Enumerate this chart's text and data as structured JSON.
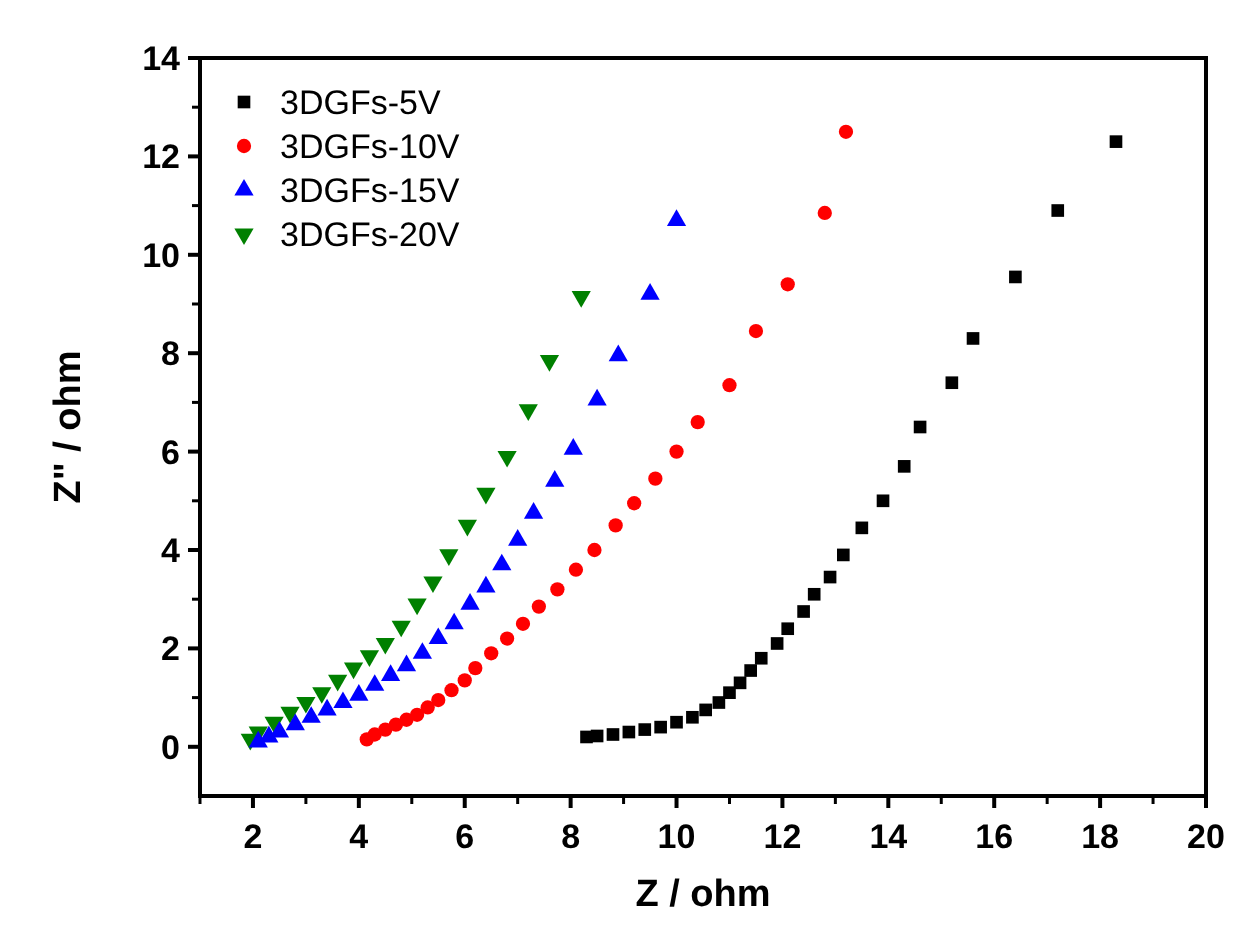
{
  "chart_data": {
    "type": "scatter",
    "xlabel": "Z / ohm",
    "ylabel": "Z\" / ohm",
    "xlim": [
      1,
      20
    ],
    "ylim": [
      -1,
      14
    ],
    "xticks": [
      2,
      4,
      6,
      8,
      10,
      12,
      14,
      16,
      18,
      20
    ],
    "yticks": [
      0,
      2,
      4,
      6,
      8,
      10,
      12,
      14
    ],
    "grid": false,
    "legend": "top left",
    "series": [
      {
        "name": "3DGFs-5V",
        "color": "#000000",
        "marker": "square",
        "x": [
          8.3,
          8.5,
          8.8,
          9.1,
          9.4,
          9.7,
          10.0,
          10.3,
          10.55,
          10.8,
          11.0,
          11.2,
          11.4,
          11.6,
          11.9,
          12.1,
          12.4,
          12.6,
          12.9,
          13.15,
          13.5,
          13.9,
          14.3,
          14.6,
          15.2,
          15.6,
          16.4,
          17.2,
          18.3
        ],
        "values": [
          0.2,
          0.22,
          0.25,
          0.3,
          0.35,
          0.4,
          0.5,
          0.6,
          0.75,
          0.9,
          1.1,
          1.3,
          1.55,
          1.8,
          2.1,
          2.4,
          2.75,
          3.1,
          3.45,
          3.9,
          4.45,
          5.0,
          5.7,
          6.5,
          7.4,
          8.3,
          9.55,
          10.9,
          12.3
        ]
      },
      {
        "name": "3DGFs-10V",
        "color": "#ff0000",
        "marker": "circle",
        "x": [
          4.15,
          4.3,
          4.5,
          4.7,
          4.9,
          5.1,
          5.3,
          5.5,
          5.75,
          6.0,
          6.2,
          6.5,
          6.8,
          7.1,
          7.4,
          7.75,
          8.1,
          8.45,
          8.85,
          9.2,
          9.6,
          10.0,
          10.4,
          11.0,
          11.5,
          12.1,
          12.8,
          13.2
        ],
        "values": [
          0.15,
          0.25,
          0.35,
          0.45,
          0.55,
          0.65,
          0.8,
          0.95,
          1.15,
          1.35,
          1.6,
          1.9,
          2.2,
          2.5,
          2.85,
          3.2,
          3.6,
          4.0,
          4.5,
          4.95,
          5.45,
          6.0,
          6.6,
          7.35,
          8.45,
          9.4,
          10.85,
          12.5
        ]
      },
      {
        "name": "3DGFs-15V",
        "color": "#0000ff",
        "marker": "triangle",
        "x": [
          2.1,
          2.3,
          2.5,
          2.8,
          3.1,
          3.4,
          3.7,
          4.0,
          4.3,
          4.6,
          4.9,
          5.2,
          5.5,
          5.8,
          6.1,
          6.4,
          6.7,
          7.0,
          7.3,
          7.7,
          8.05,
          8.5,
          8.9,
          9.5,
          10.0
        ],
        "values": [
          0.1,
          0.2,
          0.3,
          0.45,
          0.6,
          0.75,
          0.9,
          1.05,
          1.25,
          1.45,
          1.65,
          1.9,
          2.2,
          2.5,
          2.9,
          3.25,
          3.7,
          4.2,
          4.75,
          5.4,
          6.05,
          7.05,
          7.95,
          9.2,
          10.7
        ]
      },
      {
        "name": "3DGFs-20V",
        "color": "#008000",
        "marker": "triangle-down",
        "x": [
          1.95,
          2.1,
          2.4,
          2.7,
          3.0,
          3.3,
          3.6,
          3.9,
          4.2,
          4.5,
          4.8,
          5.1,
          5.4,
          5.7,
          6.05,
          6.4,
          6.8,
          7.2,
          7.6,
          8.2
        ],
        "values": [
          0.15,
          0.3,
          0.5,
          0.7,
          0.9,
          1.1,
          1.35,
          1.6,
          1.85,
          2.1,
          2.45,
          2.9,
          3.35,
          3.9,
          4.5,
          5.15,
          5.9,
          6.85,
          7.85,
          9.15
        ]
      }
    ]
  }
}
